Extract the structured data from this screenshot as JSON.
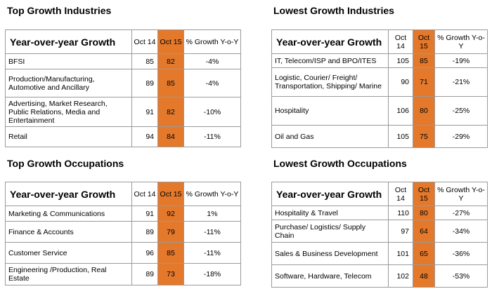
{
  "colors": {
    "highlight": "#e4792c",
    "border": "#9a9a9a"
  },
  "chart_data": [
    {
      "type": "table",
      "title": "Top Growth Industries",
      "columns": [
        "Year-over-year Growth",
        "Oct 14",
        "Oct 15",
        "% Growth Y-o-Y"
      ],
      "rows": [
        [
          "BFSI",
          "85",
          "82",
          "-4%"
        ],
        [
          "Production/Manufacturing, Automotive and Ancillary",
          "89",
          "85",
          "-4%"
        ],
        [
          "Advertising, Market Research, Public Relations, Media and Entertainment",
          "91",
          "82",
          "-10%"
        ],
        [
          "Retail",
          "94",
          "84",
          "-11%"
        ]
      ]
    },
    {
      "type": "table",
      "title": "Lowest Growth Industries",
      "columns": [
        "Year-over-year Growth",
        "Oct 14",
        "Oct 15",
        "% Growth Y-o-Y"
      ],
      "rows": [
        [
          "IT, Telecom/ISP and BPO/ITES",
          "105",
          "85",
          "-19%"
        ],
        [
          "Logistic, Courier/ Freight/ Transportation, Shipping/ Marine",
          "90",
          "71",
          "-21%"
        ],
        [
          "Hospitality",
          "106",
          "80",
          "-25%"
        ],
        [
          "Oil and Gas",
          "105",
          "75",
          "-29%"
        ]
      ]
    },
    {
      "type": "table",
      "title": "Top Growth Occupations",
      "columns": [
        "Year-over-year Growth",
        "Oct 14",
        "Oct 15",
        "% Growth Y-o-Y"
      ],
      "rows": [
        [
          "Marketing & Communications",
          "91",
          "92",
          "1%"
        ],
        [
          "Finance & Accounts",
          "89",
          "79",
          "-11%"
        ],
        [
          "Customer Service",
          "96",
          "85",
          "-11%"
        ],
        [
          "Engineering /Production, Real Estate",
          "89",
          "73",
          "-18%"
        ]
      ]
    },
    {
      "type": "table",
      "title": "Lowest Growth Occupations",
      "columns": [
        "Year-over-year Growth",
        "Oct 14",
        "Oct 15",
        "% Growth Y-o-Y"
      ],
      "rows": [
        [
          "Hospitality & Travel",
          "110",
          "80",
          "-27%"
        ],
        [
          "Purchase/ Logistics/ Supply Chain",
          "97",
          "64",
          "-34%"
        ],
        [
          "Sales & Business Development",
          "101",
          "65",
          "-36%"
        ],
        [
          "Software, Hardware, Telecom",
          "102",
          "48",
          "-53%"
        ]
      ]
    }
  ]
}
